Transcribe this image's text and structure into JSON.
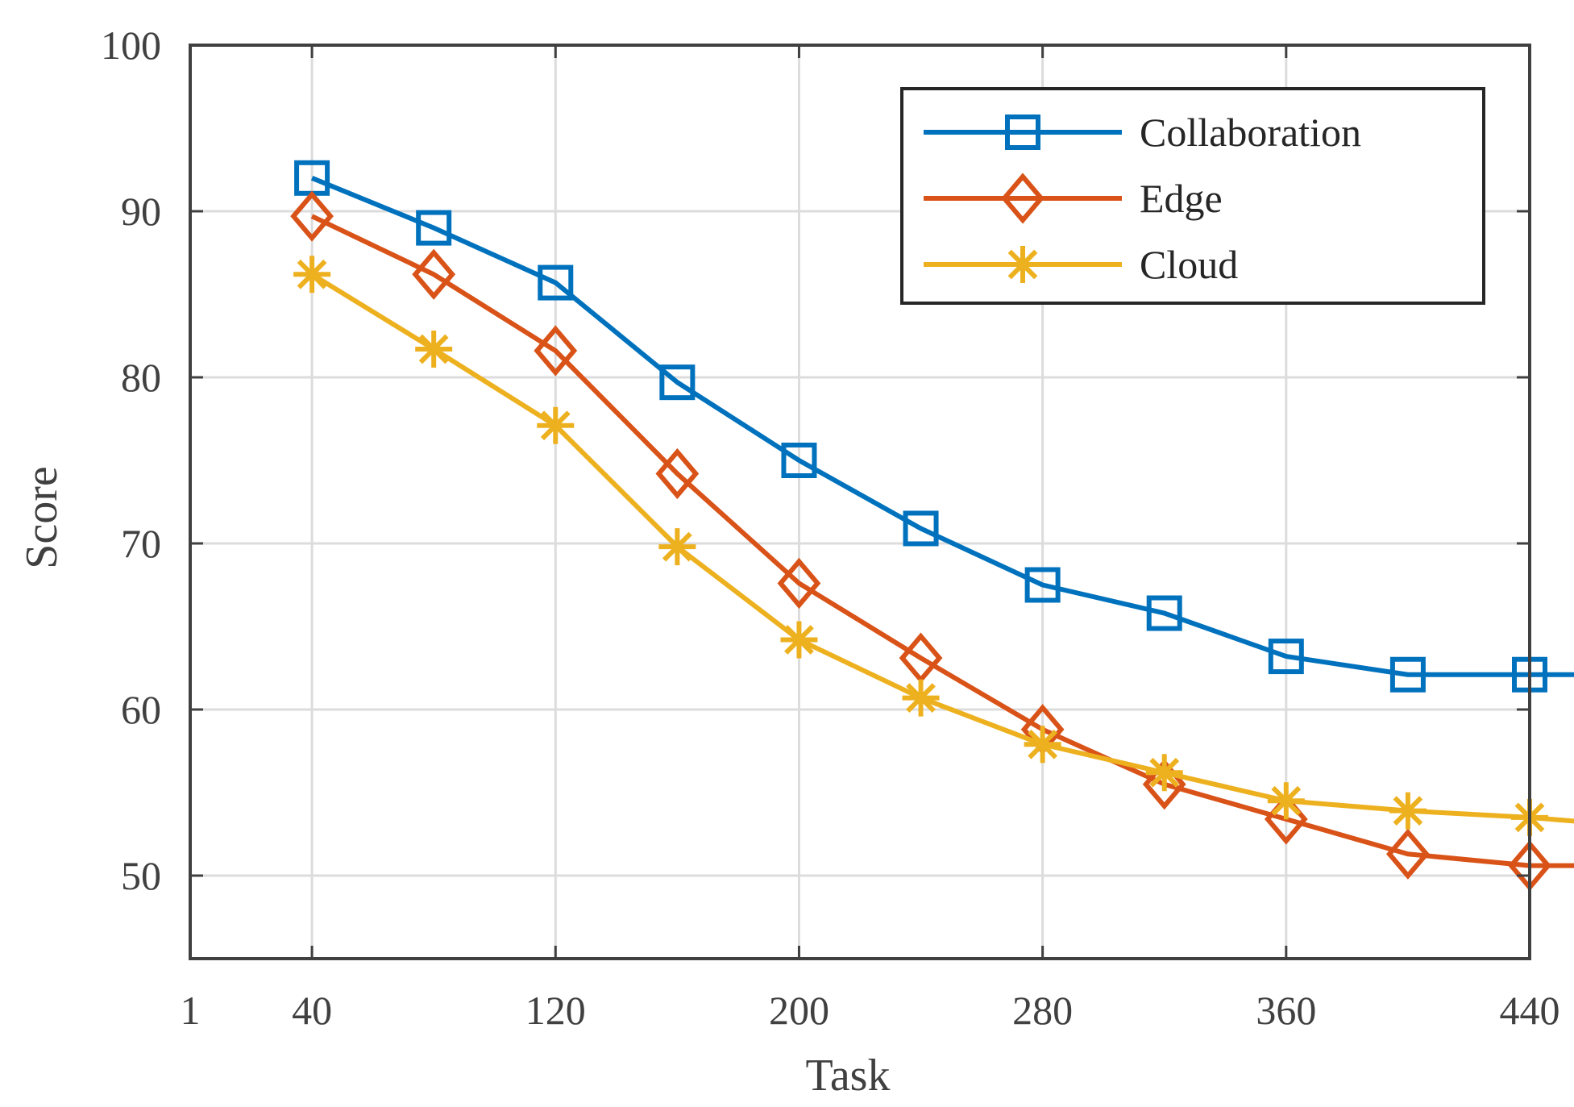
{
  "chart_data": {
    "type": "line",
    "xlabel": "Task",
    "ylabel": "Score",
    "x_ticks": [
      {
        "value": 1,
        "label": "1"
      },
      {
        "value": 2,
        "label": "40"
      },
      {
        "value": 4,
        "label": "120"
      },
      {
        "value": 6,
        "label": "200"
      },
      {
        "value": 8,
        "label": "280"
      },
      {
        "value": 10,
        "label": "360"
      },
      {
        "value": 12,
        "label": "440"
      }
    ],
    "y_ticks": [
      50,
      60,
      70,
      80,
      90,
      100
    ],
    "xlim": [
      1,
      12
    ],
    "ylim": [
      45,
      100
    ],
    "grid": true,
    "legend_position": "top-right",
    "x": [
      2,
      3,
      4,
      5,
      6,
      7,
      8,
      9,
      10,
      11,
      12,
      13
    ],
    "series": [
      {
        "name": "Collaboration",
        "color": "#0072BD",
        "marker": "square",
        "values": [
          92.0,
          89.0,
          85.7,
          79.7,
          75.0,
          70.9,
          67.5,
          65.8,
          63.2,
          62.1,
          62.1,
          62.1
        ]
      },
      {
        "name": "Edge",
        "color": "#D95319",
        "marker": "diamond",
        "values": [
          89.7,
          86.2,
          81.6,
          74.2,
          67.6,
          63.1,
          58.8,
          55.5,
          53.4,
          51.3,
          50.6,
          50.6
        ]
      },
      {
        "name": "Cloud",
        "color": "#EDB120",
        "marker": "asterisk",
        "values": [
          86.2,
          81.7,
          77.1,
          69.8,
          64.2,
          60.7,
          57.9,
          56.2,
          54.5,
          53.9,
          53.5,
          52.9
        ]
      }
    ]
  }
}
